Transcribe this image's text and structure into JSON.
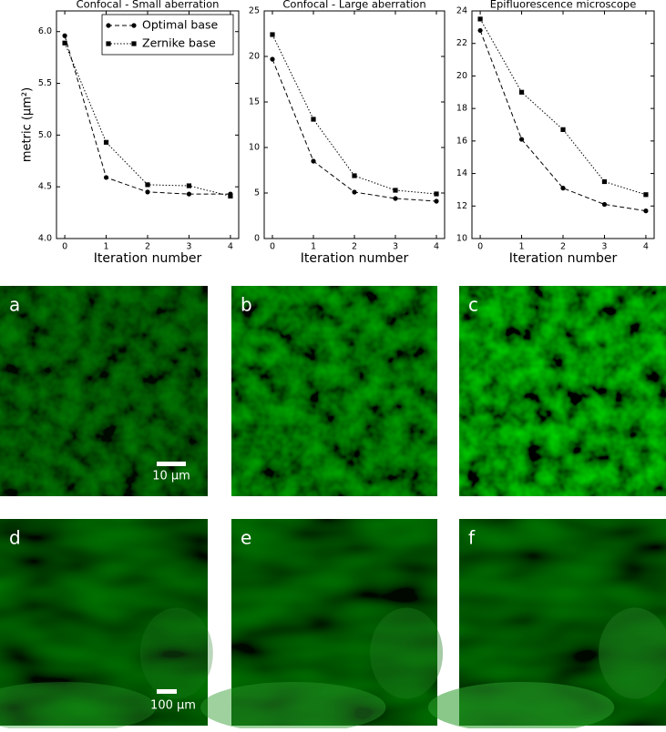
{
  "chart_data": [
    {
      "type": "line",
      "title": "Confocal - Small aberration",
      "ylabel": "metric (μm²)",
      "xlabel": "Iteration number",
      "x": [
        0,
        1,
        2,
        3,
        4
      ],
      "xlim": [
        -0.2,
        4.2
      ],
      "xticks": [
        0,
        1,
        2,
        3,
        4
      ],
      "ylim": [
        4.0,
        6.2
      ],
      "yticks": [
        {
          "value": 4.0,
          "label": "4.0"
        },
        4.5,
        {
          "value": 5.0,
          "label": "5.0"
        },
        5.5,
        {
          "value": 6.0,
          "label": "6.0"
        }
      ],
      "legend": "upper right",
      "series": [
        {
          "name": "Optimal base",
          "color": "#000000",
          "linestyle": "dashed",
          "marker": "circle",
          "values": [
            5.96,
            4.59,
            4.45,
            4.43,
            4.43
          ]
        },
        {
          "name": "Zernike base",
          "color": "#000000",
          "linestyle": "dotted",
          "marker": "square",
          "values": [
            5.89,
            4.93,
            4.52,
            4.51,
            4.41
          ]
        }
      ]
    },
    {
      "type": "line",
      "title": "Confocal - Large aberration",
      "xlabel": "Iteration number",
      "x": [
        0,
        1,
        2,
        3,
        4
      ],
      "xlim": [
        -0.2,
        4.2
      ],
      "xticks": [
        0,
        1,
        2,
        3,
        4
      ],
      "ylim": [
        0,
        25
      ],
      "yticks": [
        0,
        5,
        10,
        15,
        20,
        25
      ],
      "series": [
        {
          "name": "Optimal base",
          "color": "#000000",
          "linestyle": "dashed",
          "marker": "circle",
          "values": [
            19.7,
            8.5,
            5.1,
            4.4,
            4.1
          ]
        },
        {
          "name": "Zernike base",
          "color": "#000000",
          "linestyle": "dotted",
          "marker": "square",
          "values": [
            22.4,
            13.1,
            6.9,
            5.3,
            4.9
          ]
        }
      ]
    },
    {
      "type": "line",
      "title": "Epifluorescence microscope",
      "xlabel": "Iteration number",
      "x": [
        0,
        1,
        2,
        3,
        4
      ],
      "xlim": [
        -0.2,
        4.2
      ],
      "xticks": [
        0,
        1,
        2,
        3,
        4
      ],
      "ylim": [
        10,
        24
      ],
      "yticks": [
        10,
        12,
        14,
        16,
        18,
        20,
        22,
        24
      ],
      "series": [
        {
          "name": "Optimal base",
          "color": "#000000",
          "linestyle": "dashed",
          "marker": "circle",
          "values": [
            22.8,
            16.1,
            13.1,
            12.1,
            11.7
          ]
        },
        {
          "name": "Zernike base",
          "color": "#000000",
          "linestyle": "dotted",
          "marker": "square",
          "values": [
            23.5,
            19.0,
            16.7,
            13.5,
            12.7
          ]
        }
      ]
    }
  ],
  "panels": [
    {
      "label": "a",
      "scale_bar": "10 μm"
    },
    {
      "label": "b"
    },
    {
      "label": "c"
    },
    {
      "label": "d",
      "scale_bar": "100 μm"
    },
    {
      "label": "e"
    },
    {
      "label": "f"
    }
  ]
}
